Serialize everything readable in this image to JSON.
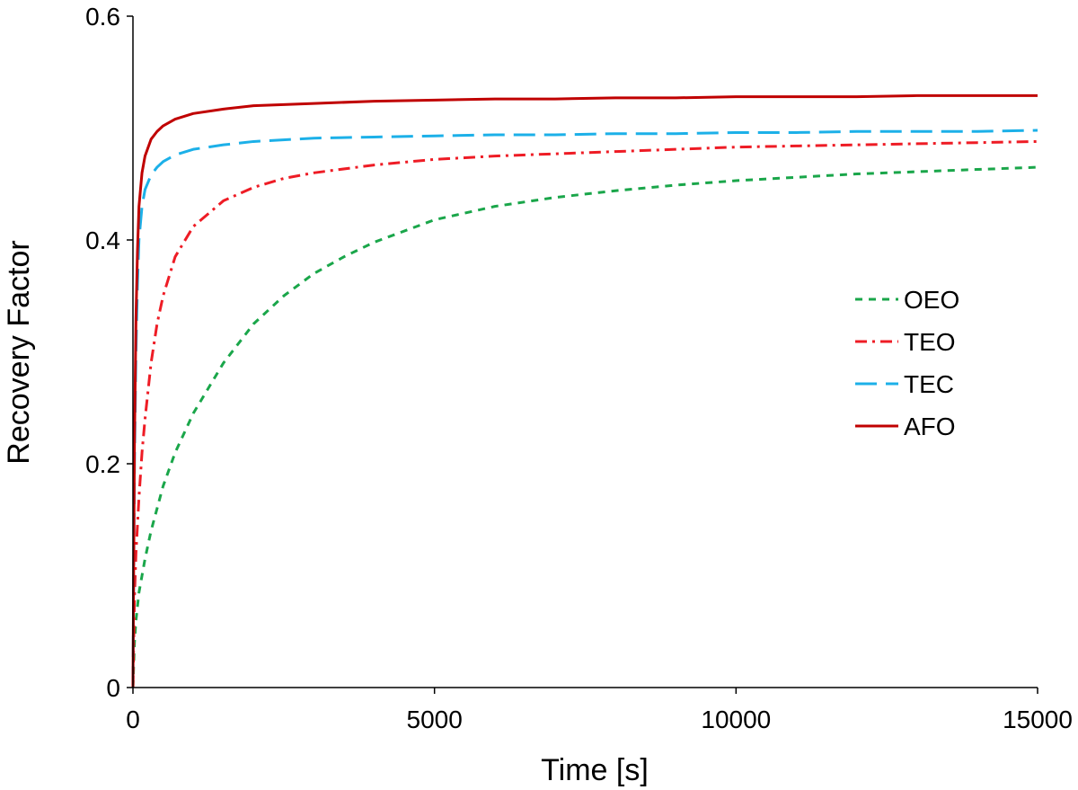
{
  "chart_data": {
    "type": "line",
    "title": "",
    "xlabel": "Time [s]",
    "ylabel": "Recovery Factor",
    "xlim": [
      0,
      15000
    ],
    "ylim": [
      0,
      0.6
    ],
    "xticks": [
      0,
      5000,
      10000,
      15000
    ],
    "xtick_labels": [
      "0",
      "5000",
      "10000",
      "15000"
    ],
    "yticks": [
      0,
      0.2,
      0.4,
      0.6
    ],
    "ytick_labels": [
      "0",
      "0.2",
      "0.4",
      "0.6"
    ],
    "grid": false,
    "legend_position": "right",
    "series": [
      {
        "name": "OEO",
        "color": "#1aa64a",
        "dash": "dashed",
        "x": [
          0,
          25,
          50,
          100,
          150,
          200,
          300,
          400,
          500,
          700,
          1000,
          1500,
          2000,
          2500,
          3000,
          3500,
          4000,
          5000,
          6000,
          7000,
          8000,
          9000,
          10000,
          11000,
          12000,
          13000,
          14000,
          15000
        ],
        "y": [
          0,
          0.04,
          0.06,
          0.085,
          0.1,
          0.115,
          0.14,
          0.16,
          0.18,
          0.21,
          0.245,
          0.29,
          0.325,
          0.35,
          0.37,
          0.385,
          0.398,
          0.418,
          0.43,
          0.438,
          0.444,
          0.449,
          0.453,
          0.456,
          0.459,
          0.461,
          0.463,
          0.465
        ]
      },
      {
        "name": "TEO",
        "color": "#ee1c25",
        "dash": "dashdot",
        "x": [
          0,
          25,
          50,
          100,
          150,
          200,
          300,
          400,
          500,
          700,
          1000,
          1500,
          2000,
          2500,
          3000,
          4000,
          5000,
          6000,
          7000,
          8000,
          9000,
          10000,
          11000,
          12000,
          13000,
          14000,
          15000
        ],
        "y": [
          0,
          0.08,
          0.12,
          0.17,
          0.21,
          0.24,
          0.29,
          0.325,
          0.35,
          0.385,
          0.412,
          0.435,
          0.447,
          0.455,
          0.46,
          0.467,
          0.472,
          0.475,
          0.477,
          0.479,
          0.481,
          0.483,
          0.484,
          0.485,
          0.486,
          0.487,
          0.488
        ]
      },
      {
        "name": "TEC",
        "color": "#1cb0e8",
        "dash": "longdash",
        "x": [
          0,
          25,
          50,
          75,
          100,
          150,
          200,
          300,
          400,
          500,
          700,
          1000,
          1500,
          2000,
          3000,
          4000,
          5000,
          6000,
          7000,
          8000,
          9000,
          10000,
          11000,
          12000,
          13000,
          14000,
          15000
        ],
        "y": [
          0,
          0.2,
          0.3,
          0.36,
          0.4,
          0.43,
          0.445,
          0.458,
          0.465,
          0.47,
          0.476,
          0.481,
          0.485,
          0.488,
          0.491,
          0.492,
          0.493,
          0.494,
          0.494,
          0.495,
          0.495,
          0.496,
          0.496,
          0.497,
          0.497,
          0.497,
          0.498
        ]
      },
      {
        "name": "AFO",
        "color": "#c00000",
        "dash": "solid",
        "x": [
          0,
          25,
          50,
          75,
          100,
          150,
          200,
          300,
          400,
          500,
          700,
          1000,
          1500,
          2000,
          3000,
          4000,
          5000,
          6000,
          7000,
          8000,
          9000,
          10000,
          11000,
          12000,
          13000,
          14000,
          15000
        ],
        "y": [
          0,
          0.22,
          0.33,
          0.39,
          0.43,
          0.46,
          0.475,
          0.49,
          0.497,
          0.502,
          0.508,
          0.513,
          0.517,
          0.52,
          0.522,
          0.524,
          0.525,
          0.526,
          0.526,
          0.527,
          0.527,
          0.528,
          0.528,
          0.528,
          0.529,
          0.529,
          0.529
        ]
      }
    ]
  }
}
